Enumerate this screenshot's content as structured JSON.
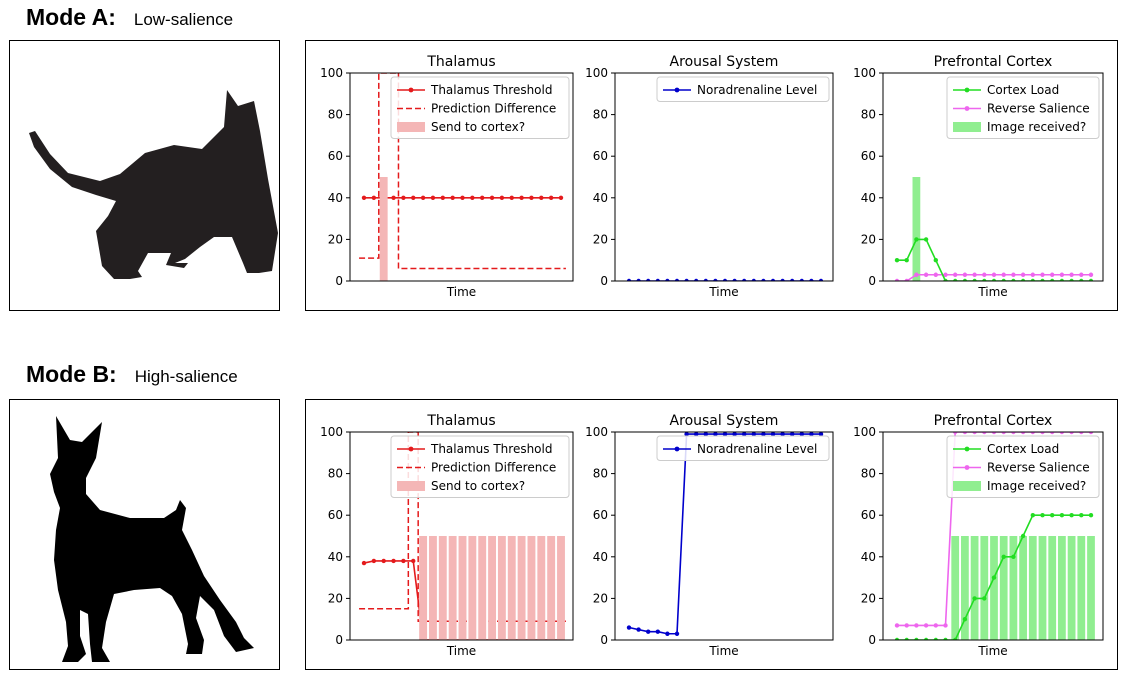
{
  "modes": [
    {
      "title": "Mode A:",
      "subtitle": "Low-salience",
      "animal_icon": "cat-silhouette-icon",
      "panels": [
        {
          "title": "Thalamus",
          "xlabel": "Time",
          "ylim": [
            0,
            100
          ],
          "yticks": [
            "0",
            "20",
            "40",
            "60",
            "80",
            "100"
          ],
          "legend": [
            {
              "label": "Thalamus Threshold",
              "style": "line-marker",
              "color": "#e41a1c"
            },
            {
              "label": "Prediction Difference",
              "style": "dashed",
              "color": "#e41a1c"
            },
            {
              "label": "Send to cortex?",
              "style": "patch",
              "color": "#f4b6b6"
            }
          ]
        },
        {
          "title": "Arousal System",
          "xlabel": "Time",
          "ylim": [
            0,
            100
          ],
          "yticks": [
            "0",
            "20",
            "40",
            "60",
            "80",
            "100"
          ],
          "legend": [
            {
              "label": "Noradrenaline Level",
              "style": "line-marker",
              "color": "#0000cc"
            }
          ]
        },
        {
          "title": "Prefrontal Cortex",
          "xlabel": "Time",
          "ylim": [
            0,
            100
          ],
          "yticks": [
            "0",
            "20",
            "40",
            "60",
            "80",
            "100"
          ],
          "legend": [
            {
              "label": "Cortex Load",
              "style": "line-marker",
              "color": "#22dd22"
            },
            {
              "label": "Reverse Salience",
              "style": "line-marker",
              "color": "#ee66ee"
            },
            {
              "label": "Image received?",
              "style": "patch",
              "color": "#90ee90"
            }
          ]
        }
      ]
    },
    {
      "title": "Mode B:",
      "subtitle": "High-salience",
      "animal_icon": "dog-silhouette-icon",
      "panels": [
        {
          "title": "Thalamus",
          "xlabel": "Time",
          "ylim": [
            0,
            100
          ],
          "yticks": [
            "0",
            "20",
            "40",
            "60",
            "80",
            "100"
          ],
          "legend": [
            {
              "label": "Thalamus Threshold",
              "style": "line-marker",
              "color": "#e41a1c"
            },
            {
              "label": "Prediction Difference",
              "style": "dashed",
              "color": "#e41a1c"
            },
            {
              "label": "Send to cortex?",
              "style": "patch",
              "color": "#f4b6b6"
            }
          ]
        },
        {
          "title": "Arousal System",
          "xlabel": "Time",
          "ylim": [
            0,
            100
          ],
          "yticks": [
            "0",
            "20",
            "40",
            "60",
            "80",
            "100"
          ],
          "legend": [
            {
              "label": "Noradrenaline Level",
              "style": "line-marker",
              "color": "#0000cc"
            }
          ]
        },
        {
          "title": "Prefrontal Cortex",
          "xlabel": "Time",
          "ylim": [
            0,
            100
          ],
          "yticks": [
            "0",
            "20",
            "40",
            "60",
            "80",
            "100"
          ],
          "legend": [
            {
              "label": "Cortex Load",
              "style": "line-marker",
              "color": "#22dd22"
            },
            {
              "label": "Reverse Salience",
              "style": "line-marker",
              "color": "#ee66ee"
            },
            {
              "label": "Image received?",
              "style": "patch",
              "color": "#90ee90"
            }
          ]
        }
      ]
    }
  ],
  "chart_data": [
    {
      "type": "line",
      "title": "Thalamus",
      "xlabel": "Time",
      "ylabel": "",
      "ylim": [
        0,
        100
      ],
      "x": [
        0,
        1,
        2,
        3,
        4,
        5,
        6,
        7,
        8,
        9,
        10,
        11,
        12,
        13,
        14,
        15,
        16,
        17,
        18,
        19,
        20
      ],
      "series": [
        {
          "name": "Thalamus Threshold",
          "kind": "line-marker",
          "color": "#e41a1c",
          "values": [
            40,
            40,
            40,
            40,
            40,
            40,
            40,
            40,
            40,
            40,
            40,
            40,
            40,
            40,
            40,
            40,
            40,
            40,
            40,
            40,
            40
          ]
        },
        {
          "name": "Prediction Difference",
          "kind": "dashed-step",
          "color": "#e41a1c",
          "values": [
            11,
            11,
            100,
            100,
            6,
            6,
            6,
            6,
            6,
            6,
            6,
            6,
            6,
            6,
            6,
            6,
            6,
            6,
            6,
            6,
            6
          ]
        },
        {
          "name": "Send to cortex?",
          "kind": "bar",
          "color": "#f4b6b6",
          "values": [
            0,
            0,
            50,
            0,
            0,
            0,
            0,
            0,
            0,
            0,
            0,
            0,
            0,
            0,
            0,
            0,
            0,
            0,
            0,
            0,
            0
          ]
        }
      ]
    },
    {
      "type": "line",
      "title": "Arousal System",
      "xlabel": "Time",
      "ylabel": "",
      "ylim": [
        0,
        100
      ],
      "x": [
        0,
        1,
        2,
        3,
        4,
        5,
        6,
        7,
        8,
        9,
        10,
        11,
        12,
        13,
        14,
        15,
        16,
        17,
        18,
        19,
        20
      ],
      "series": [
        {
          "name": "Noradrenaline Level",
          "kind": "line-marker",
          "color": "#0000cc",
          "values": [
            0,
            0,
            0,
            0,
            0,
            0,
            0,
            0,
            0,
            0,
            0,
            0,
            0,
            0,
            0,
            0,
            0,
            0,
            0,
            0,
            0
          ]
        }
      ]
    },
    {
      "type": "line",
      "title": "Prefrontal Cortex",
      "xlabel": "Time",
      "ylabel": "",
      "ylim": [
        0,
        100
      ],
      "x": [
        0,
        1,
        2,
        3,
        4,
        5,
        6,
        7,
        8,
        9,
        10,
        11,
        12,
        13,
        14,
        15,
        16,
        17,
        18,
        19,
        20
      ],
      "series": [
        {
          "name": "Image received?",
          "kind": "bar",
          "color": "#90ee90",
          "values": [
            0,
            0,
            50,
            0,
            0,
            0,
            0,
            0,
            0,
            0,
            0,
            0,
            0,
            0,
            0,
            0,
            0,
            0,
            0,
            0,
            0
          ]
        },
        {
          "name": "Reverse Salience",
          "kind": "line-marker",
          "color": "#ee66ee",
          "values": [
            0,
            0,
            3,
            3,
            3,
            3,
            3,
            3,
            3,
            3,
            3,
            3,
            3,
            3,
            3,
            3,
            3,
            3,
            3,
            3,
            3
          ]
        },
        {
          "name": "Cortex Load",
          "kind": "line-marker",
          "color": "#22dd22",
          "values": [
            10,
            10,
            20,
            20,
            10,
            0,
            0,
            0,
            0,
            0,
            0,
            0,
            0,
            0,
            0,
            0,
            0,
            0,
            0,
            0,
            0
          ]
        }
      ]
    },
    {
      "type": "line",
      "title": "Thalamus",
      "xlabel": "Time",
      "ylabel": "",
      "ylim": [
        0,
        100
      ],
      "x": [
        0,
        1,
        2,
        3,
        4,
        5,
        6,
        7,
        8,
        9,
        10,
        11,
        12,
        13,
        14,
        15,
        16,
        17,
        18,
        19,
        20
      ],
      "series": [
        {
          "name": "Thalamus Threshold",
          "kind": "line-marker",
          "color": "#e41a1c",
          "values": [
            37,
            38,
            38,
            38,
            38,
            38,
            0,
            0,
            0,
            0,
            0,
            0,
            0,
            0,
            0,
            0,
            0,
            0,
            0,
            0,
            0
          ]
        },
        {
          "name": "Prediction Difference",
          "kind": "dashed-step",
          "color": "#e41a1c",
          "values": [
            15,
            15,
            15,
            15,
            15,
            100,
            9,
            9,
            9,
            9,
            9,
            9,
            9,
            9,
            9,
            9,
            9,
            9,
            9,
            9,
            9
          ]
        },
        {
          "name": "Send to cortex?",
          "kind": "bar",
          "color": "#f4b6b6",
          "values": [
            0,
            0,
            0,
            0,
            0,
            0,
            50,
            50,
            50,
            50,
            50,
            50,
            50,
            50,
            50,
            50,
            50,
            50,
            50,
            50,
            50
          ]
        }
      ]
    },
    {
      "type": "line",
      "title": "Arousal System",
      "xlabel": "Time",
      "ylabel": "",
      "ylim": [
        0,
        100
      ],
      "x": [
        0,
        1,
        2,
        3,
        4,
        5,
        6,
        7,
        8,
        9,
        10,
        11,
        12,
        13,
        14,
        15,
        16,
        17,
        18,
        19,
        20
      ],
      "series": [
        {
          "name": "Noradrenaline Level",
          "kind": "line-marker",
          "color": "#0000cc",
          "values": [
            6,
            5,
            4,
            4,
            3,
            3,
            99,
            99,
            99,
            99,
            99,
            99,
            99,
            99,
            99,
            99,
            99,
            99,
            99,
            99,
            99
          ]
        }
      ]
    },
    {
      "type": "line",
      "title": "Prefrontal Cortex",
      "xlabel": "Time",
      "ylabel": "",
      "ylim": [
        0,
        100
      ],
      "x": [
        0,
        1,
        2,
        3,
        4,
        5,
        6,
        7,
        8,
        9,
        10,
        11,
        12,
        13,
        14,
        15,
        16,
        17,
        18,
        19,
        20
      ],
      "series": [
        {
          "name": "Image received?",
          "kind": "bar",
          "color": "#90ee90",
          "values": [
            0,
            0,
            0,
            0,
            0,
            0,
            50,
            50,
            50,
            50,
            50,
            50,
            50,
            50,
            50,
            50,
            50,
            50,
            50,
            50,
            50
          ]
        },
        {
          "name": "Reverse Salience",
          "kind": "line-marker",
          "color": "#ee66ee",
          "values": [
            7,
            7,
            7,
            7,
            7,
            7,
            100,
            100,
            100,
            100,
            100,
            100,
            100,
            100,
            100,
            100,
            100,
            100,
            100,
            100,
            100
          ]
        },
        {
          "name": "Cortex Load",
          "kind": "line-marker",
          "color": "#22dd22",
          "values": [
            0,
            0,
            0,
            0,
            0,
            0,
            0,
            10,
            20,
            20,
            30,
            40,
            40,
            50,
            60,
            60,
            60,
            60,
            60,
            60,
            60
          ]
        }
      ]
    }
  ]
}
